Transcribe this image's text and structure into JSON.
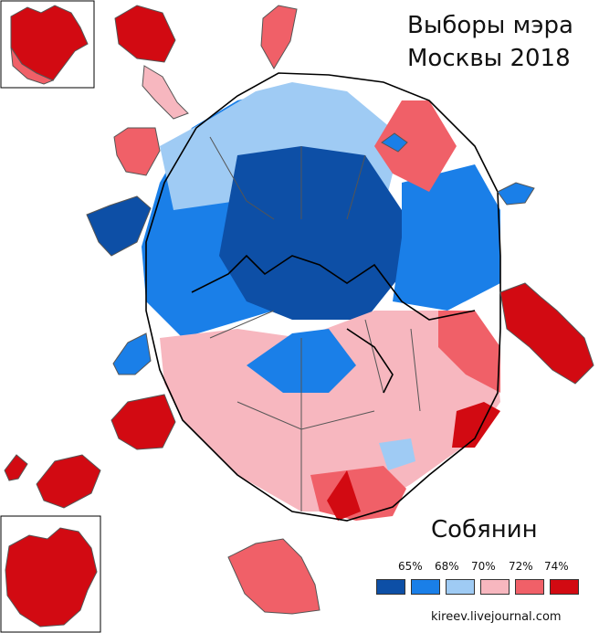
{
  "title_line1": "Выборы мэра",
  "title_line2": "Москвы 2018",
  "candidate": "Собянин",
  "source": "kireev.livejournal.com",
  "legend": {
    "labels": [
      "65%",
      "68%",
      "70%",
      "72%",
      "74%"
    ],
    "colors": [
      "#0d4fa6",
      "#1a7fe8",
      "#9fcbf4",
      "#f7b7bf",
      "#f06068",
      "#d20a12"
    ]
  }
}
